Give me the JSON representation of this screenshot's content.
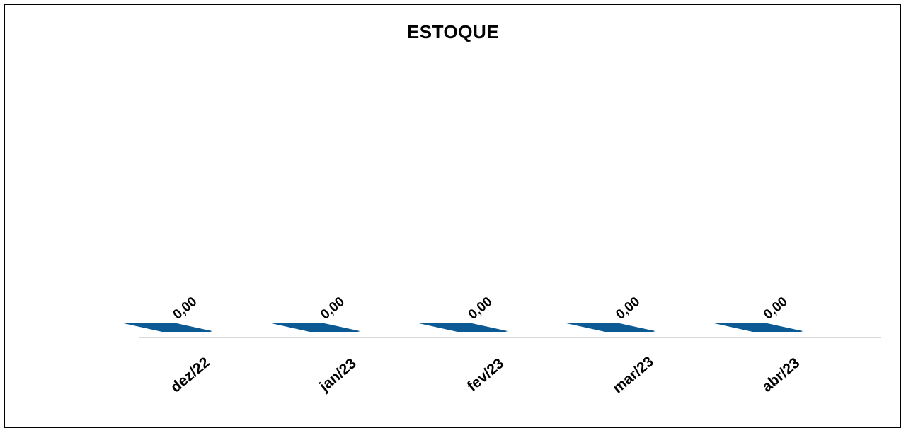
{
  "chart_data": {
    "type": "bar",
    "title": "ESTOQUE",
    "xlabel": "",
    "ylabel": "",
    "categories": [
      "dez/22",
      "jan/23",
      "fev/23",
      "mar/23",
      "abr/23"
    ],
    "values": [
      0,
      0,
      0,
      0,
      0
    ],
    "value_labels": [
      "0,00",
      "0,00",
      "0,00",
      "0,00",
      "0,00"
    ],
    "grid": false,
    "legend": "none",
    "colors": {
      "bar": "#0b5a94",
      "axis": "#d9d9d9",
      "frame": "#000000"
    }
  }
}
